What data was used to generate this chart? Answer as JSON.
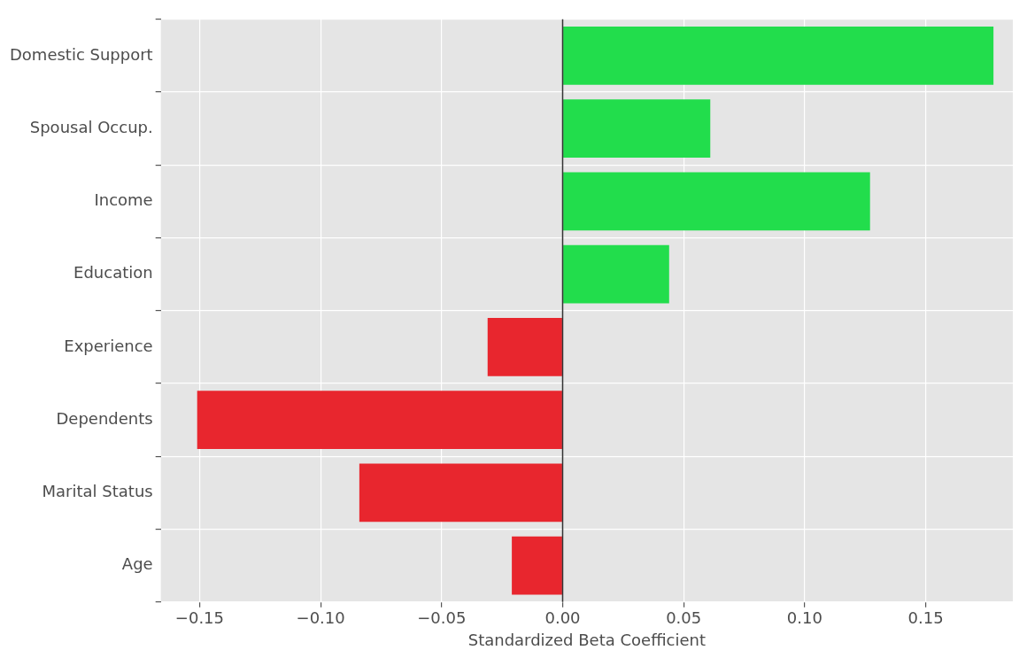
{
  "chart_data": {
    "type": "bar",
    "orientation": "horizontal",
    "xlabel": "Standardized Beta Coefficient",
    "categories": [
      "Domestic Support",
      "Spousal Occup.",
      "Income",
      "Education",
      "Experience",
      "Dependents",
      "Marital Status",
      "Age"
    ],
    "values": [
      0.178,
      0.061,
      0.127,
      0.044,
      -0.031,
      -0.151,
      -0.084,
      -0.021
    ],
    "colors": [
      "#22dd4c",
      "#22dd4c",
      "#22dd4c",
      "#22dd4c",
      "#e8262e",
      "#e8262e",
      "#e8262e",
      "#e8262e"
    ],
    "xlim": [
      -0.166,
      0.186
    ],
    "xticks": [
      {
        "value": -0.15,
        "label": "−0.15"
      },
      {
        "value": -0.1,
        "label": "−0.10"
      },
      {
        "value": -0.05,
        "label": "−0.05"
      },
      {
        "value": 0,
        "label": "0.00"
      },
      {
        "value": 0.05,
        "label": "0.05"
      },
      {
        "value": 0.1,
        "label": "0.10"
      },
      {
        "value": 0.15,
        "label": "0.15"
      }
    ],
    "ref_lines": [
      {
        "axis": "x",
        "value": 0,
        "color": "#333333"
      }
    ],
    "grid": true,
    "legend": false
  }
}
